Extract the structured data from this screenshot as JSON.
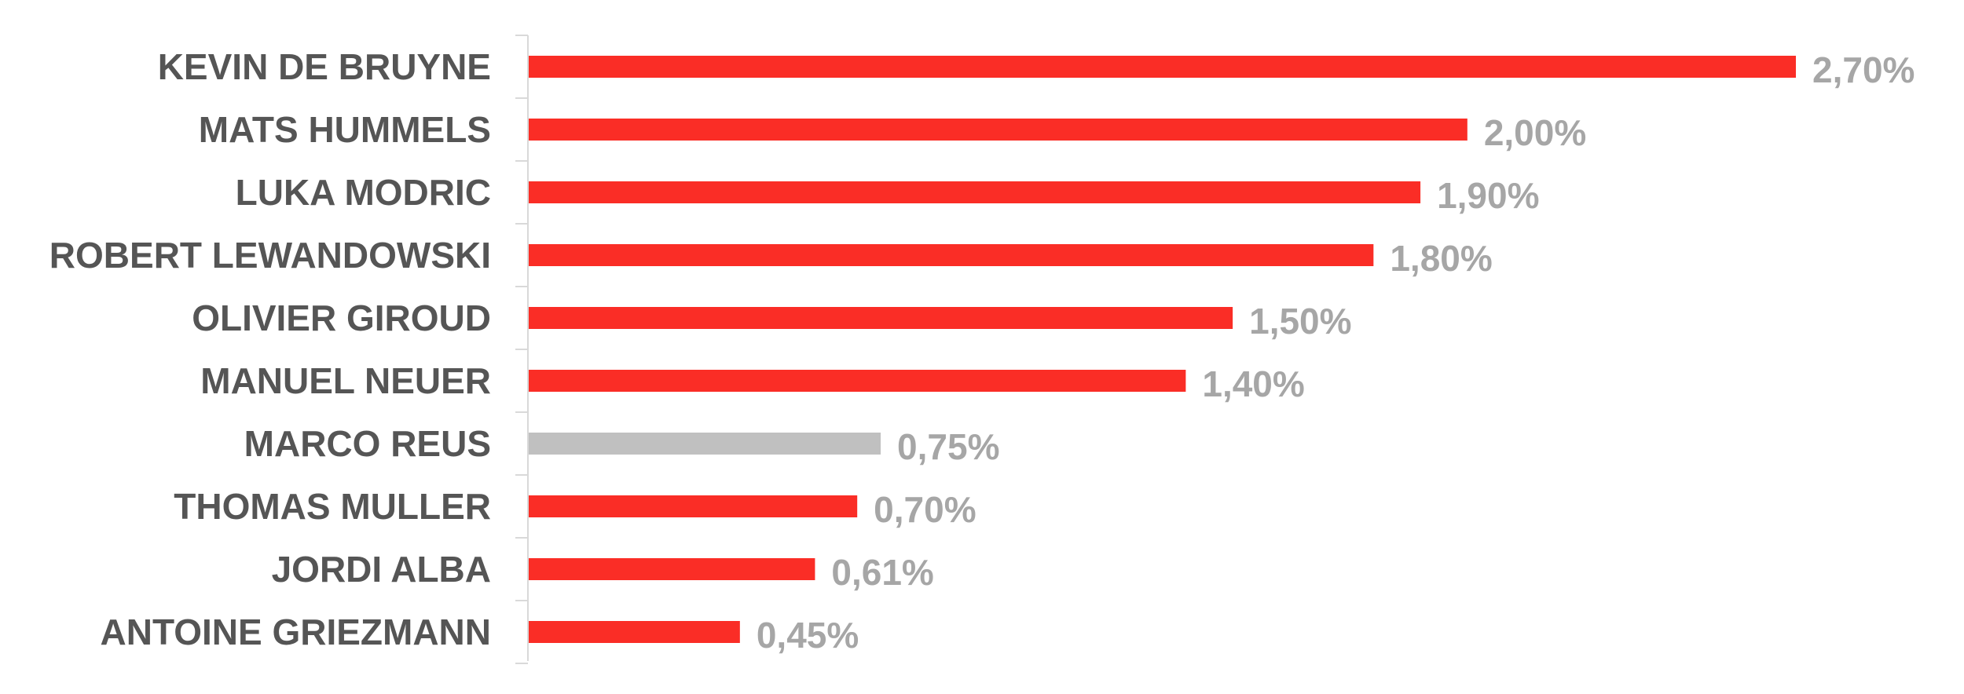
{
  "chart_data": {
    "type": "bar",
    "orientation": "horizontal",
    "categories": [
      "KEVIN DE BRUYNE",
      "MATS HUMMELS",
      "LUKA MODRIC",
      "ROBERT LEWANDOWSKI",
      "OLIVIER GIROUD",
      "MANUEL NEUER",
      "MARCO REUS",
      "THOMAS MULLER",
      "JORDI ALBA",
      "ANTOINE GRIEZMANN"
    ],
    "values": [
      2.7,
      2.0,
      1.9,
      1.8,
      1.5,
      1.4,
      0.75,
      0.7,
      0.61,
      0.45
    ],
    "value_labels": [
      "2,70%",
      "2,00%",
      "1,90%",
      "1,80%",
      "1,50%",
      "1,40%",
      "0,75%",
      "0,70%",
      "0,61%",
      "0,45%"
    ],
    "unit": "%",
    "xlim": [
      0,
      2.7
    ],
    "grid": false,
    "legend": "none",
    "highlight_index": 6,
    "colors": {
      "bar": "#fa2d26",
      "highlight_bar": "#c0c0c0",
      "category_text": "#555555",
      "value_text": "#a6a6a6",
      "axis": "#d9d9d9"
    }
  }
}
